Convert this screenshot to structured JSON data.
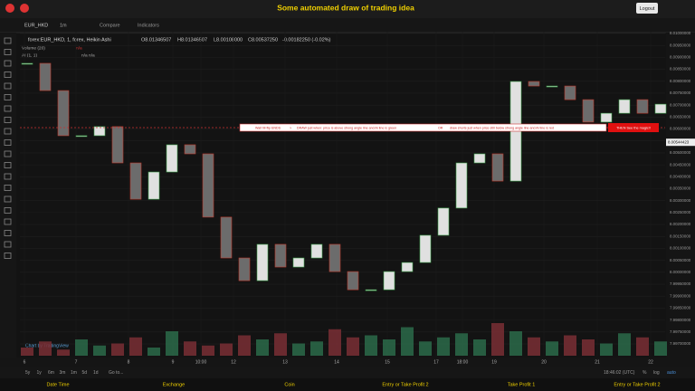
{
  "header": {
    "title": "Some automated draw of trading idea",
    "logout": "Logout"
  },
  "toolbar": {
    "symbol": "EUR_HKD",
    "interval": "1m",
    "compare": "Compare",
    "indicators": "Indicators"
  },
  "legend": {
    "series": "forex:EUR_HKD, 1, forex, Heikin Ashi",
    "open": "O8.01346507",
    "high": "H8.01346507",
    "low": "L8.00108000",
    "close": "C8.00537250",
    "change": "-0.00182250 (-0.02%)",
    "volume": "Volume (20)",
    "volume_value": "n/a",
    "ai": "AI (1, 1)",
    "ai_values": "n/a  n/a"
  },
  "annotation": {
    "parts": [
      "Wait till flip ENDS",
      ">",
      "DRAW just when:  price is above strong angle line and AI line is green",
      "OR",
      "draw shorts just when price still below strong angle line and AI line is red"
    ],
    "callout": "THEN See the magic!!"
  },
  "chart_data": {
    "type": "candlestick",
    "closes": [
      8.00875,
      8.00761,
      8.00572,
      8.00572,
      8.0061,
      8.00458,
      8.00306,
      8.0042,
      8.00534,
      8.00496,
      8.00231,
      8.0006,
      7.99965,
      8.00117,
      8.00022,
      8.0006,
      8.00117,
      8.00003,
      7.99927,
      7.99927,
      8.00003,
      8.00041,
      8.00155,
      8.00269,
      8.00458,
      8.00496,
      8.00382,
      8.00799,
      8.0078,
      8.0078,
      8.00723,
      8.00629,
      8.00666,
      8.00723,
      8.00666,
      8.00704
    ],
    "volumes": [
      20,
      35,
      15,
      40,
      25,
      30,
      45,
      20,
      60,
      35,
      25,
      30,
      50,
      40,
      55,
      30,
      35,
      65,
      45,
      50,
      40,
      70,
      35,
      45,
      55,
      40,
      80,
      60,
      45,
      35,
      50,
      40,
      30,
      55,
      45,
      35
    ],
    "ylim": [
      7.997,
      8.01
    ],
    "yticks": [
      {
        "value": 8.01,
        "label": "8.01000000"
      },
      {
        "value": 8.0095,
        "label": "8.00950000"
      },
      {
        "value": 8.009,
        "label": "8.00900000"
      },
      {
        "value": 8.0085,
        "label": "8.00850000"
      },
      {
        "value": 8.008,
        "label": "8.00800000"
      },
      {
        "value": 8.0075,
        "label": "8.00750000"
      },
      {
        "value": 8.007,
        "label": "8.00700000"
      },
      {
        "value": 8.0065,
        "label": "8.00650000"
      },
      {
        "value": 8.006,
        "label": "8.00600000"
      },
      {
        "value": 8.0055,
        "label": "8.00550000"
      },
      {
        "value": 8.005,
        "label": "8.00500000"
      },
      {
        "value": 8.0045,
        "label": "8.00450000"
      },
      {
        "value": 8.004,
        "label": "8.00400000"
      },
      {
        "value": 8.0035,
        "label": "8.00350000"
      },
      {
        "value": 8.003,
        "label": "8.00300000"
      },
      {
        "value": 8.0025,
        "label": "8.00250000"
      },
      {
        "value": 8.002,
        "label": "8.00200000"
      },
      {
        "value": 8.0015,
        "label": "8.00150000"
      },
      {
        "value": 8.001,
        "label": "8.00100000"
      },
      {
        "value": 8.0005,
        "label": "8.00050000"
      },
      {
        "value": 8,
        "label": "8.00000000"
      },
      {
        "value": 7.9995,
        "label": "7.99950000"
      },
      {
        "value": 7.999,
        "label": "7.99900000"
      },
      {
        "value": 7.9985,
        "label": "7.99850000"
      },
      {
        "value": 7.998,
        "label": "7.99800000"
      },
      {
        "value": 7.9975,
        "label": "7.99750000"
      },
      {
        "value": 7.997,
        "label": "7.99700000"
      }
    ],
    "last_price": {
      "value": 8.00544423,
      "label": "8.00544423"
    },
    "x_labels": [
      "6",
      "7",
      "8",
      "9",
      "10:00",
      "12",
      "13",
      "14",
      "15",
      "17",
      "18:00",
      "19",
      "20",
      "21",
      "22"
    ],
    "watermark": "Chart by TradingView"
  },
  "range_bar": {
    "buttons": [
      "5y",
      "1y",
      "6m",
      "3m",
      "1m",
      "5d",
      "1d"
    ],
    "goto": "Go to...",
    "clock": "18:46:02 (UTC)",
    "percent": "%",
    "log": "log",
    "auto": "auto"
  },
  "footer": [
    "Date Time",
    "Exchange",
    "Coin",
    "Entry or Take Profit 2",
    "Take Profit 1",
    "Entry or Take Profit 2"
  ]
}
